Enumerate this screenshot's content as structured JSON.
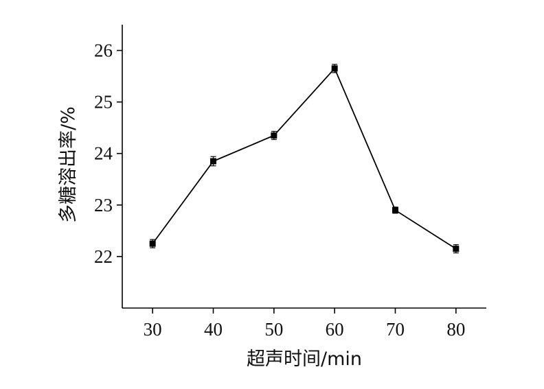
{
  "chart_data": {
    "type": "line",
    "title": "",
    "xlabel": "超声时间/min",
    "ylabel": "多糖溶出率/%",
    "xlim": [
      25,
      85
    ],
    "ylim": [
      21,
      26.5
    ],
    "x_ticks": [
      30,
      40,
      50,
      60,
      70,
      80
    ],
    "x_tick_labels": [
      "30",
      "40",
      "50",
      "60",
      "70",
      "80"
    ],
    "y_ticks": [
      22,
      23,
      24,
      25,
      26
    ],
    "y_tick_labels": [
      "22",
      "23",
      "24",
      "25",
      "26"
    ],
    "grid": false,
    "legend": "none",
    "series": [
      {
        "x": [
          30,
          40,
          50,
          60,
          70,
          80
        ],
        "y": [
          22.25,
          23.85,
          24.35,
          25.65,
          22.9,
          22.15
        ],
        "error": [
          0.08,
          0.09,
          0.08,
          0.08,
          0.06,
          0.08
        ],
        "marker": "square",
        "color": "#000000"
      }
    ]
  }
}
